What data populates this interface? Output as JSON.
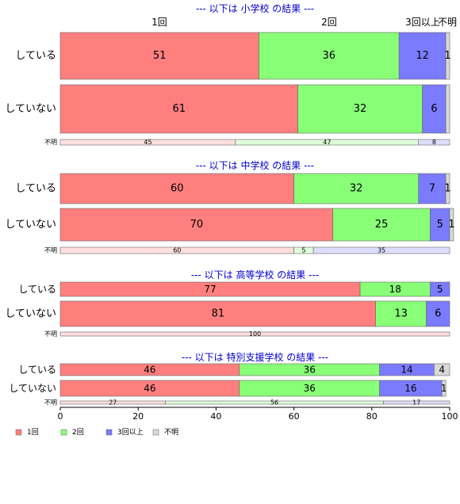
{
  "chart_data": {
    "type": "bar",
    "orientation": "horizontal",
    "stacked": true,
    "xlim": [
      0,
      100
    ],
    "x_ticks": [
      0,
      20,
      40,
      60,
      80,
      100
    ],
    "top_category_labels": [
      "1回",
      "2回",
      "3回以上",
      "不明"
    ],
    "legend": {
      "placement": "bottom-left",
      "entries": [
        {
          "name": "1回",
          "color": "#ff7f7f"
        },
        {
          "name": "2回",
          "color": "#88ff77"
        },
        {
          "name": "3回以上",
          "color": "#7b7bff"
        },
        {
          "name": "不明",
          "color": "#d9d9d9"
        }
      ]
    },
    "groups": [
      {
        "title": "--- 以下は 小学校 の結果 ---",
        "rows": [
          {
            "label": "している",
            "values": [
              51,
              36,
              12,
              1
            ],
            "value_labels": [
              "51",
              "36",
              "12",
              "1"
            ]
          },
          {
            "label": "していない",
            "values": [
              61,
              32,
              6,
              1
            ],
            "value_labels": [
              "61",
              "32",
              "6",
              ""
            ]
          },
          {
            "label": "不明",
            "thin": true,
            "values": [
              45,
              47,
              8,
              0
            ],
            "value_labels": [
              "45",
              "47",
              "8",
              ""
            ]
          }
        ]
      },
      {
        "title": "--- 以下は 中学校 の結果 ---",
        "rows": [
          {
            "label": "している",
            "values": [
              60,
              32,
              7,
              1
            ],
            "value_labels": [
              "60",
              "32",
              "7",
              "1"
            ]
          },
          {
            "label": "していない",
            "values": [
              70,
              25,
              5,
              1
            ],
            "value_labels": [
              "70",
              "25",
              "5",
              "1"
            ]
          },
          {
            "label": "不明",
            "thin": true,
            "values": [
              60,
              5,
              35,
              0
            ],
            "value_labels": [
              "60",
              "5",
              "35",
              ""
            ]
          }
        ]
      },
      {
        "title": "--- 以下は 高等学校 の結果 ---",
        "rows": [
          {
            "label": "している",
            "values": [
              77,
              18,
              5,
              0
            ],
            "value_labels": [
              "77",
              "18",
              "5",
              ""
            ]
          },
          {
            "label": "していない",
            "values": [
              81,
              13,
              6,
              0
            ],
            "value_labels": [
              "81",
              "13",
              "6",
              ""
            ]
          },
          {
            "label": "不明",
            "thin": true,
            "values": [
              100,
              0,
              0,
              0
            ],
            "value_labels": [
              "100",
              "",
              "",
              ""
            ]
          }
        ]
      },
      {
        "title": "--- 以下は 特別支援学校 の結果 ---",
        "rows": [
          {
            "label": "している",
            "values": [
              46,
              36,
              14,
              4
            ],
            "value_labels": [
              "46",
              "36",
              "14",
              "4"
            ]
          },
          {
            "label": "していない",
            "values": [
              46,
              36,
              16,
              1
            ],
            "value_labels": [
              "46",
              "36",
              "16",
              "1"
            ]
          },
          {
            "label": "不明",
            "thin": true,
            "values": [
              27,
              56,
              17,
              0
            ],
            "value_labels": [
              "27",
              "56",
              "17",
              ""
            ]
          }
        ]
      }
    ]
  }
}
